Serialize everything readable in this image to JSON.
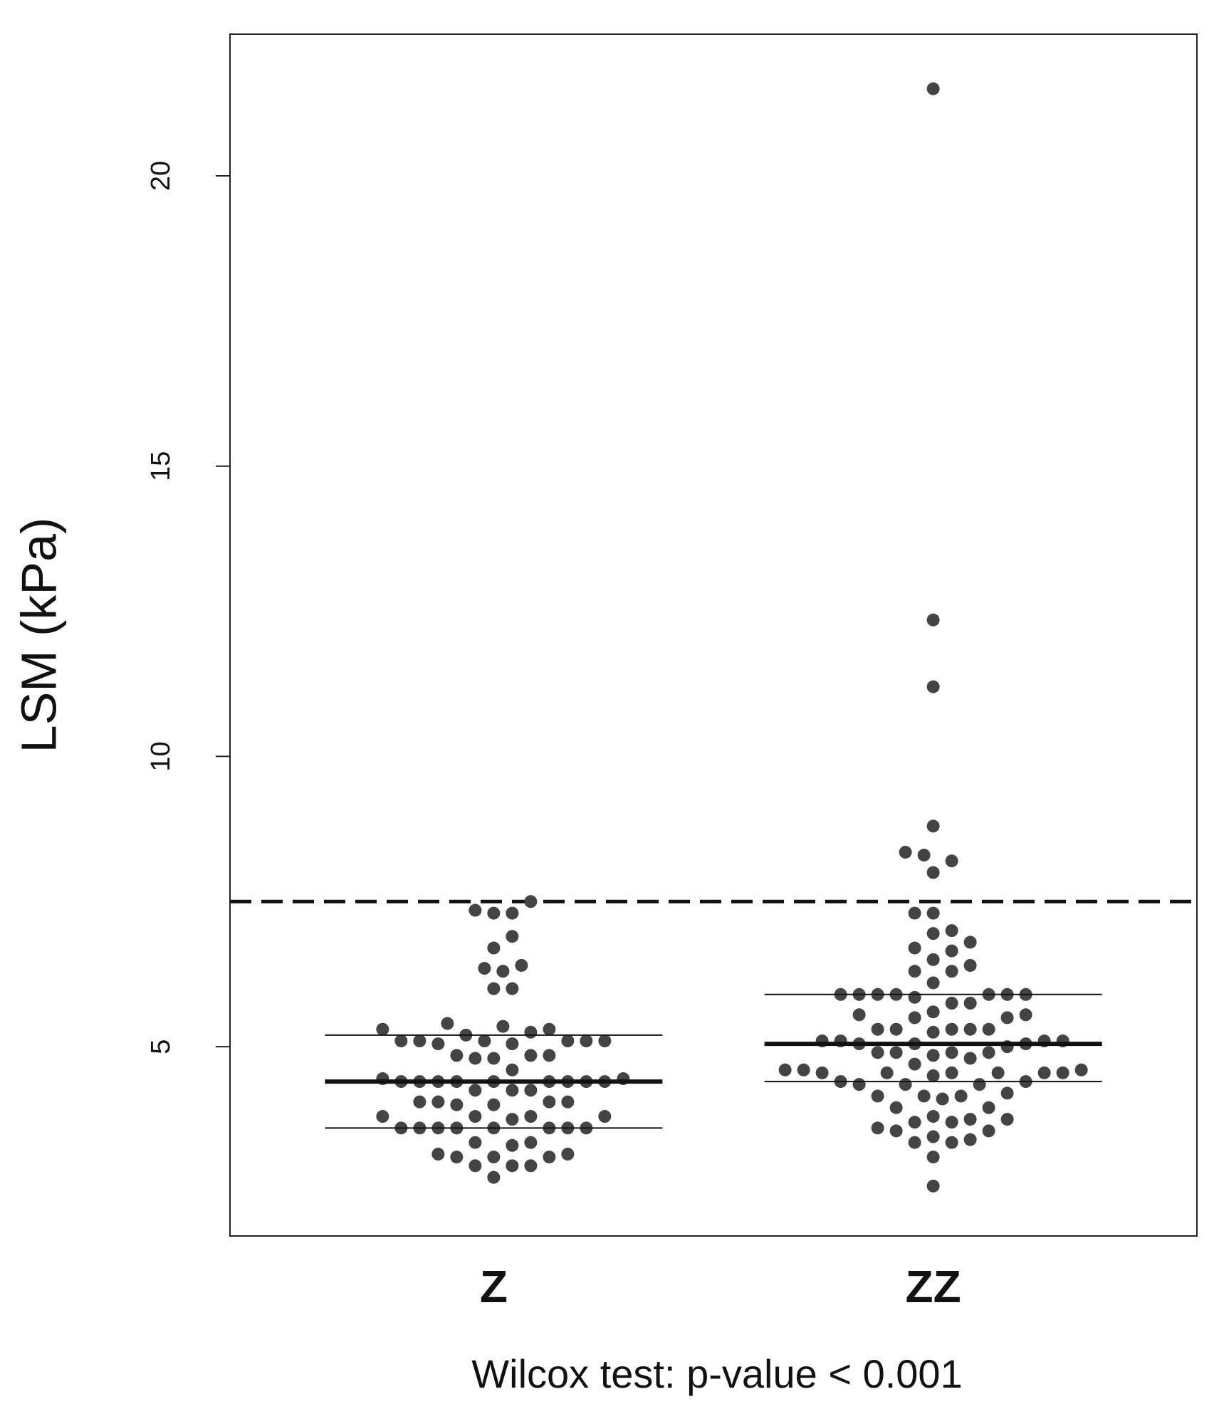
{
  "chart_data": {
    "type": "strip",
    "y_label": "LSM (kPa)",
    "caption": "Wilcox test: p-value < 0.001",
    "categories": [
      "Z",
      "ZZ"
    ],
    "values": [
      [
        7.5,
        7.35,
        7.3,
        7.3,
        6.9,
        6.7,
        6.4,
        6.35,
        6.3,
        6.0,
        6.0,
        5.4,
        5.35,
        5.3,
        5.3,
        5.25,
        5.2,
        5.1,
        5.1,
        5.1,
        5.1,
        5.05,
        5.1,
        5.1,
        5.05,
        4.85,
        4.85,
        4.8,
        4.8,
        4.85,
        4.6,
        4.45,
        4.4,
        4.4,
        4.4,
        4.4,
        4.4,
        4.4,
        4.45,
        4.4,
        4.4,
        4.4,
        4.25,
        4.25,
        4.25,
        4.05,
        4.05,
        4.0,
        4.05,
        4.05,
        4.0,
        3.8,
        3.8,
        3.8,
        3.8,
        3.75,
        3.6,
        3.6,
        3.6,
        3.6,
        3.6,
        3.6,
        3.6,
        3.6,
        3.35,
        3.35,
        3.3,
        3.15,
        3.1,
        3.1,
        3.1,
        3.15,
        2.95,
        2.95,
        2.95,
        2.75
      ],
      [
        21.5,
        12.35,
        11.2,
        8.8,
        8.35,
        8.3,
        8.2,
        8.0,
        7.3,
        7.3,
        7.0,
        6.95,
        6.8,
        6.7,
        6.65,
        6.5,
        6.4,
        6.3,
        6.3,
        6.1,
        5.9,
        5.9,
        5.9,
        5.9,
        5.9,
        5.9,
        5.9,
        5.85,
        5.75,
        5.75,
        5.6,
        5.55,
        5.55,
        5.5,
        5.5,
        5.3,
        5.3,
        5.3,
        5.3,
        5.3,
        5.25,
        5.1,
        5.1,
        5.1,
        5.05,
        5.05,
        5.05,
        5.1,
        5.0,
        4.9,
        4.9,
        4.9,
        4.85,
        4.9,
        4.8,
        4.7,
        4.6,
        4.55,
        4.55,
        4.55,
        4.55,
        4.55,
        4.5,
        4.55,
        4.6,
        4.6,
        4.4,
        4.35,
        4.35,
        4.4,
        4.35,
        4.2,
        4.15,
        4.15,
        4.15,
        4.1,
        3.95,
        3.95,
        3.8,
        3.75,
        3.7,
        3.7,
        3.75,
        3.6,
        3.55,
        3.55,
        3.45,
        3.4,
        3.35,
        3.35,
        3.1,
        2.6
      ]
    ],
    "median": [
      4.4,
      5.05
    ],
    "q1": [
      3.6,
      4.4
    ],
    "q3": [
      5.2,
      5.9
    ],
    "cutoff": 7.5,
    "color": "#444444",
    "ylim": [
      1.74,
      22.44
    ],
    "yticks": [
      5,
      10,
      15,
      20
    ]
  }
}
